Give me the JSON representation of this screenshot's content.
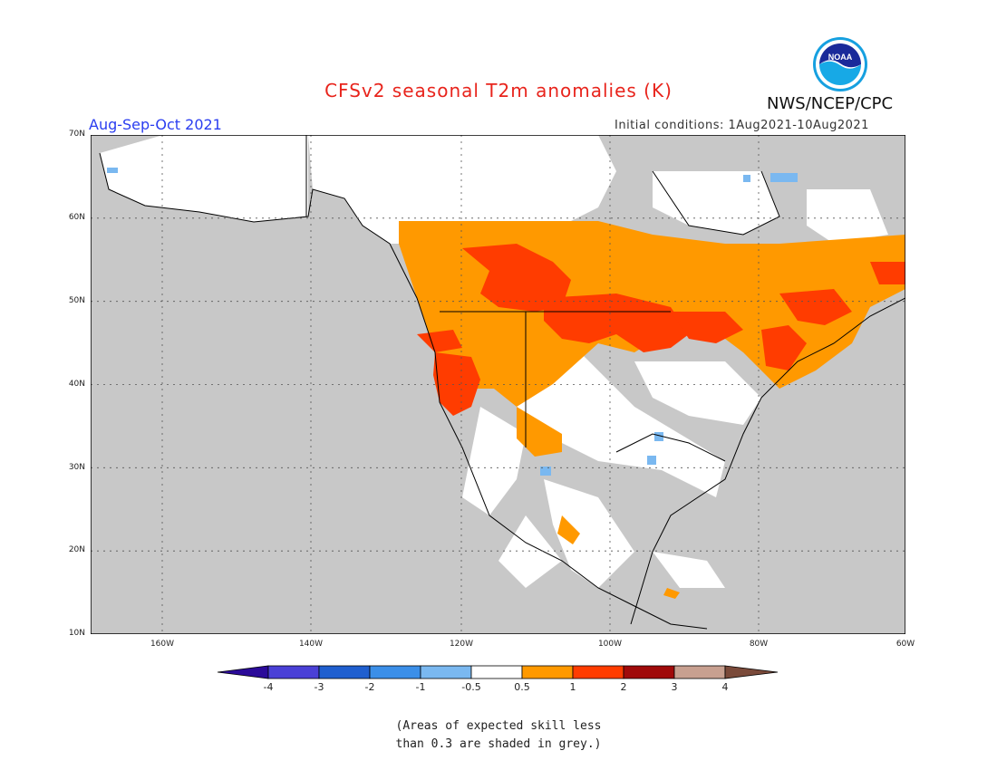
{
  "title": "CFSv2 seasonal T2m anomalies (K)",
  "season": "Aug-Sep-Oct 2021",
  "initial_conditions": "Initial conditions: 1Aug2021-10Aug2021",
  "agency": "NWS/NCEP/CPC",
  "logo_text": "NOAA",
  "lat_labels": [
    "70N",
    "60N",
    "50N",
    "40N",
    "30N",
    "20N",
    "10N"
  ],
  "lon_labels": [
    "160W",
    "140W",
    "120W",
    "100W",
    "80W",
    "60W"
  ],
  "colorbar": {
    "tick_labels": [
      "-4",
      "-3",
      "-2",
      "-1",
      "-0.5",
      "0.5",
      "1",
      "2",
      "3",
      "4"
    ],
    "colors": [
      "#2b0a99",
      "#4a40d6",
      "#1f5fcf",
      "#3b8fe8",
      "#7ab8f0",
      "#ffffff",
      "#ff9900",
      "#ff3c00",
      "#a00a0a",
      "#c8a090",
      "#7a4a3a"
    ]
  },
  "note_line1": "(Areas of expected skill less",
  "note_line2": "than 0.3 are shaded in grey.)",
  "colors": {
    "title": "#e8241c",
    "season": "#2a3df0",
    "skill_grey": "#c8c8c8",
    "anom_0_5_1": "#ff9900",
    "anom_1_2": "#ff3c00",
    "anom_neg": "#7ab8f0"
  }
}
